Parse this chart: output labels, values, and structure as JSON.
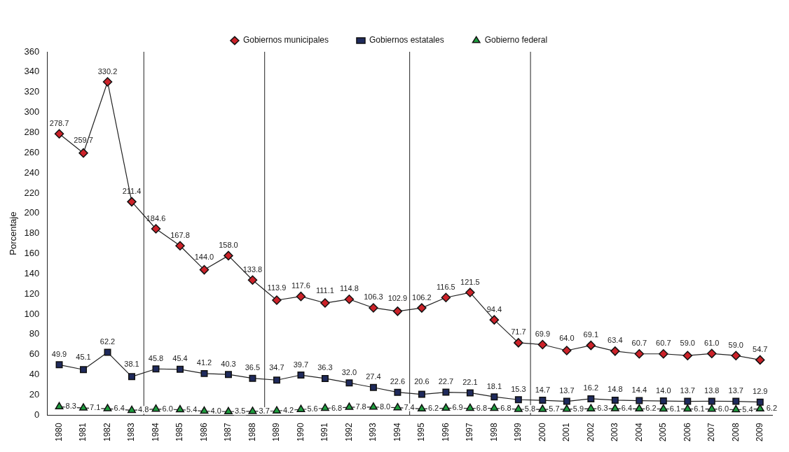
{
  "chart_data": {
    "type": "line",
    "ylabel": "Porcentaje",
    "x": [
      1980,
      1981,
      1982,
      1983,
      1984,
      1985,
      1986,
      1987,
      1988,
      1989,
      1990,
      1991,
      1992,
      1993,
      1994,
      1995,
      1996,
      1997,
      1998,
      1999,
      2000,
      2001,
      2002,
      2003,
      2004,
      2005,
      2006,
      2007,
      2008,
      2009
    ],
    "xlim": [
      1979.5,
      2009.5
    ],
    "xticks": [
      1980,
      1981,
      1982,
      1983,
      1984,
      1985,
      1986,
      1987,
      1988,
      1989,
      1990,
      1991,
      1992,
      1993,
      1994,
      1995,
      1996,
      1997,
      1998,
      1999,
      2000,
      2001,
      2002,
      2003,
      2004,
      2005,
      2006,
      2007,
      2008,
      2009
    ],
    "ylim": [
      0,
      360
    ],
    "yticks": [
      0,
      20,
      40,
      60,
      80,
      100,
      120,
      140,
      160,
      180,
      200,
      220,
      240,
      260,
      280,
      300,
      320,
      340,
      360
    ],
    "series": [
      {
        "name": "Gobiernos municipales",
        "color": "#cc2229",
        "marker": "diamond",
        "value_labels": [
          "278.7",
          "259.7",
          "330.2",
          "211.4",
          "184.6",
          "167.8",
          "144.0",
          "158.0",
          "133.8",
          "113.9",
          "117.6",
          "111.1",
          "114.8",
          "106.3",
          "102.9",
          "106.2",
          "116.5",
          "121.5",
          "94.4",
          "71.7",
          "69.9",
          "64.0",
          "69.1",
          "63.4",
          "60.7",
          "60.7",
          "59.0",
          "61.0",
          "59.0",
          "54.7"
        ],
        "values": [
          278.7,
          259.7,
          330.2,
          211.4,
          184.6,
          167.8,
          144.0,
          158.0,
          133.8,
          113.9,
          117.6,
          111.1,
          114.8,
          106.3,
          102.9,
          106.2,
          116.5,
          121.5,
          94.4,
          71.7,
          69.9,
          64.0,
          69.1,
          63.4,
          60.7,
          60.7,
          59.0,
          61.0,
          59.0,
          54.7
        ]
      },
      {
        "name": "Gobiernos estatales",
        "color": "#1f2a5c",
        "marker": "square",
        "value_labels": [
          "49.9",
          "45.1",
          "62.2",
          "38.1",
          "45.8",
          "45.4",
          "41.2",
          "40.3",
          "36.5",
          "34.7",
          "39.7",
          "36.3",
          "32.0",
          "27.4",
          "22.6",
          "20.6",
          "22.7",
          "22.1",
          "18.1",
          "15.3",
          "14.7",
          "13.7",
          "16.2",
          "14.8",
          "14.4",
          "14.0",
          "13.7",
          "13.8",
          "13.7",
          "12.9"
        ],
        "values": [
          49.9,
          45.1,
          62.2,
          38.1,
          45.8,
          45.4,
          41.2,
          40.3,
          36.5,
          34.7,
          39.7,
          36.3,
          32.0,
          27.4,
          22.6,
          20.6,
          22.7,
          22.1,
          18.1,
          15.3,
          14.7,
          13.7,
          16.2,
          14.8,
          14.4,
          14.0,
          13.7,
          13.8,
          13.7,
          12.9
        ]
      },
      {
        "name": "Gobierno federal",
        "color": "#1e9e3e",
        "marker": "triangle",
        "value_labels": [
          "8.3",
          "7.1",
          "6.4",
          "4.8",
          "6.0",
          "5.4",
          "4.0",
          "3.5",
          "3.7",
          "4.2",
          "5.6",
          "6.8",
          "7.8",
          "8.0",
          "7.4",
          "6.2",
          "6.9",
          "6.8",
          "6.8",
          "5.8",
          "5.7",
          "5.9",
          "6.3",
          "6.4",
          "6.2",
          "6.1",
          "6.1",
          "6.0",
          "5.4",
          "6.2"
        ],
        "values": [
          8.3,
          7.1,
          6.4,
          4.8,
          6.0,
          5.4,
          4.0,
          3.5,
          3.7,
          4.2,
          5.6,
          6.8,
          7.8,
          8.0,
          7.4,
          6.2,
          6.9,
          6.8,
          6.8,
          5.8,
          5.7,
          5.9,
          6.3,
          6.4,
          6.2,
          6.1,
          6.1,
          6.0,
          5.4,
          6.2
        ]
      }
    ],
    "ref_lines": [
      {
        "axis": "x",
        "value": 1983.5
      },
      {
        "axis": "x",
        "value": 1988.5
      },
      {
        "axis": "x",
        "value": 1994.5
      },
      {
        "axis": "x",
        "value": 1999.5
      }
    ],
    "grid": false,
    "legend": "top",
    "line_style": "solid"
  }
}
